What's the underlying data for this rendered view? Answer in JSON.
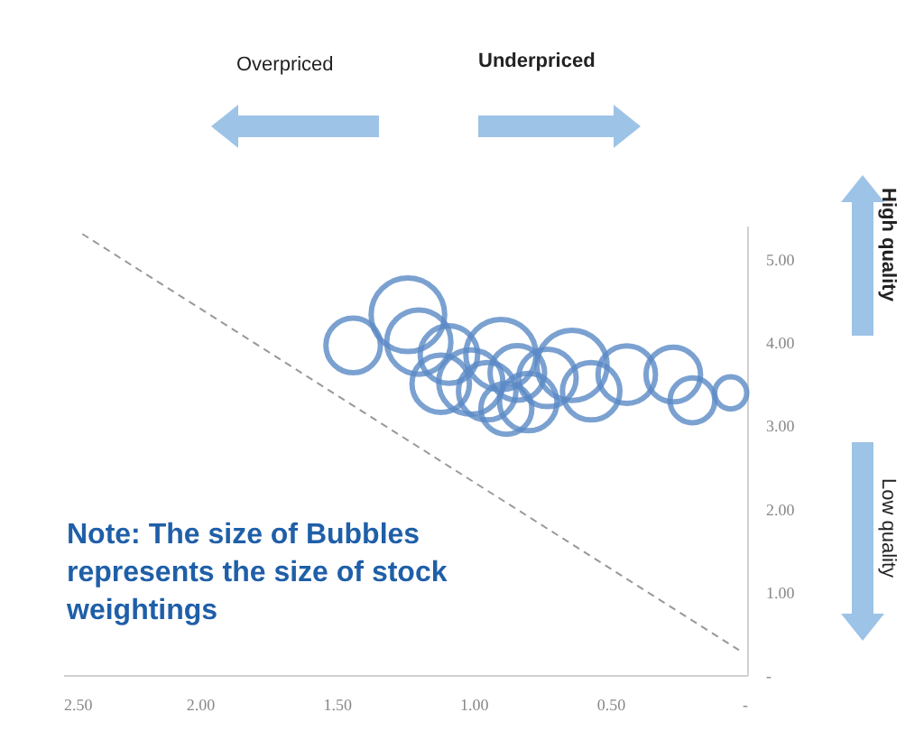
{
  "chart_data": {
    "type": "bubble",
    "annotations": [
      "Overpriced",
      "Underpriced",
      "High quality",
      "Low quality",
      "Note: The size of Bubbles represents the size of stock weightings"
    ],
    "xlim": [
      2.5,
      0
    ],
    "xticks": [
      {
        "value": 2.5,
        "label": "2.50"
      },
      {
        "value": 2,
        "label": "2.00"
      },
      {
        "value": 1.5,
        "label": "1.50"
      },
      {
        "value": 1,
        "label": "1.00"
      },
      {
        "value": 0.5,
        "label": "0.50"
      },
      {
        "value": 0,
        "label": "-"
      }
    ],
    "ylim": [
      0,
      5.4
    ],
    "yticks": [
      {
        "value": 0,
        "label": "-"
      },
      {
        "value": 1,
        "label": "1.00"
      },
      {
        "value": 2,
        "label": "2.00"
      },
      {
        "value": 3,
        "label": "3.00"
      },
      {
        "value": 4,
        "label": "4.00"
      },
      {
        "value": 5,
        "label": "5.00"
      }
    ],
    "series": [
      {
        "color": "#5b8ac6",
        "x": [
          1.44,
          1.24,
          1.2,
          1.09,
          1.01,
          0.9,
          0.95,
          0.84,
          0.8,
          0.64,
          0.57,
          0.44,
          0.27,
          0.2,
          0.06,
          1.12,
          0.73,
          0.88
        ],
        "values": [
          3.96,
          4.33,
          4.0,
          3.85,
          3.52,
          3.85,
          3.41,
          3.63,
          3.28,
          3.72,
          3.41,
          3.61,
          3.61,
          3.3,
          3.39,
          3.5,
          3.57,
          3.2
        ],
        "sizes": [
          0.55,
          1,
          0.76,
          0.61,
          0.76,
          0.91,
          0.61,
          0.55,
          0.61,
          0.91,
          0.61,
          0.61,
          0.55,
          0.37,
          0.19,
          0.61,
          0.61,
          0.48
        ]
      },
      {
        "type": "line",
        "color": "#999999",
        "line_style": "dashed",
        "x": [
          2.43,
          0.03
        ],
        "values": [
          5.3,
          0.3
        ]
      }
    ],
    "grid": false
  }
}
